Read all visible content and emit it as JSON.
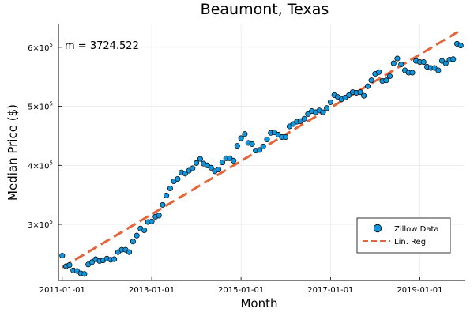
{
  "chart_data": {
    "type": "scatter",
    "title": "Beaumont, Texas",
    "xlabel": "Month",
    "ylabel": "Median Price ($)",
    "annotation": "m = 3724.522",
    "legend_position": "bottom-right",
    "grid": true,
    "xlim": [
      "2010-12-01",
      "2020-01-01"
    ],
    "ylim": [
      205000,
      640000
    ],
    "x_ticks": [
      "2011-01-01",
      "2013-01-01",
      "2015-01-01",
      "2017-01-01",
      "2019-01-01"
    ],
    "y_ticks": [
      {
        "value": 300000,
        "mantissa": "3",
        "exponent": "5"
      },
      {
        "value": 400000,
        "mantissa": "4",
        "exponent": "5"
      },
      {
        "value": 500000,
        "mantissa": "5",
        "exponent": "5"
      },
      {
        "value": 600000,
        "mantissa": "6",
        "exponent": "5"
      }
    ],
    "tick_multiplier": "×10",
    "series": [
      {
        "name": "Zillow Data",
        "kind": "scatter",
        "color": "#0f96dd",
        "x": [
          "2011-01-01",
          "2011-02-01",
          "2011-03-01",
          "2011-04-01",
          "2011-05-01",
          "2011-06-01",
          "2011-07-01",
          "2011-08-01",
          "2011-09-01",
          "2011-10-01",
          "2011-11-01",
          "2011-12-01",
          "2012-01-01",
          "2012-02-01",
          "2012-03-01",
          "2012-04-01",
          "2012-05-01",
          "2012-06-01",
          "2012-07-01",
          "2012-08-01",
          "2012-09-01",
          "2012-10-01",
          "2012-11-01",
          "2012-12-01",
          "2013-01-01",
          "2013-02-01",
          "2013-03-01",
          "2013-04-01",
          "2013-05-01",
          "2013-06-01",
          "2013-07-01",
          "2013-08-01",
          "2013-09-01",
          "2013-10-01",
          "2013-11-01",
          "2013-12-01",
          "2014-01-01",
          "2014-02-01",
          "2014-03-01",
          "2014-04-01",
          "2014-05-01",
          "2014-06-01",
          "2014-07-01",
          "2014-08-01",
          "2014-09-01",
          "2014-10-01",
          "2014-11-01",
          "2014-12-01",
          "2015-01-01",
          "2015-02-01",
          "2015-03-01",
          "2015-04-01",
          "2015-05-01",
          "2015-06-01",
          "2015-07-01",
          "2015-08-01",
          "2015-09-01",
          "2015-10-01",
          "2015-11-01",
          "2015-12-01",
          "2016-01-01",
          "2016-02-01",
          "2016-03-01",
          "2016-04-01",
          "2016-05-01",
          "2016-06-01",
          "2016-07-01",
          "2016-08-01",
          "2016-09-01",
          "2016-10-01",
          "2016-11-01",
          "2016-12-01",
          "2017-01-01",
          "2017-02-01",
          "2017-03-01",
          "2017-04-01",
          "2017-05-01",
          "2017-06-01",
          "2017-07-01",
          "2017-08-01",
          "2017-09-01",
          "2017-10-01",
          "2017-11-01",
          "2017-12-01",
          "2018-01-01",
          "2018-02-01",
          "2018-03-01",
          "2018-04-01",
          "2018-05-01",
          "2018-06-01",
          "2018-07-01",
          "2018-08-01",
          "2018-09-01",
          "2018-10-01",
          "2018-11-01",
          "2018-12-01",
          "2019-01-01",
          "2019-02-01",
          "2019-03-01",
          "2019-04-01",
          "2019-05-01",
          "2019-06-01",
          "2019-07-01",
          "2019-08-01",
          "2019-09-01",
          "2019-10-01",
          "2019-11-01",
          "2019-12-01"
        ],
        "y": [
          247000,
          229000,
          231000,
          222000,
          221000,
          217000,
          216000,
          232000,
          236000,
          241000,
          238000,
          239000,
          242000,
          240000,
          241000,
          253000,
          257000,
          257000,
          253000,
          271000,
          281000,
          293000,
          290000,
          304000,
          305000,
          313000,
          315000,
          333000,
          349000,
          361000,
          373000,
          377000,
          388000,
          386000,
          391000,
          395000,
          404000,
          411000,
          403000,
          400000,
          396000,
          390000,
          393000,
          405000,
          412000,
          412000,
          408000,
          433000,
          446000,
          453000,
          438000,
          436000,
          425000,
          426000,
          432000,
          444000,
          455000,
          456000,
          452000,
          448000,
          448000,
          466000,
          470000,
          474000,
          475000,
          479000,
          487000,
          492000,
          490000,
          493000,
          490000,
          497000,
          507000,
          519000,
          516000,
          512000,
          515000,
          519000,
          524000,
          523000,
          524000,
          518000,
          534000,
          544000,
          555000,
          558000,
          543000,
          544000,
          551000,
          573000,
          581000,
          571000,
          561000,
          557000,
          557000,
          577000,
          575000,
          575000,
          567000,
          565000,
          565000,
          561000,
          577000,
          573000,
          579000,
          580000,
          606000,
          603000
        ]
      },
      {
        "name": "Lin. Reg",
        "kind": "line",
        "dashed": true,
        "color": "#e2653b",
        "x": [
          "2011-01-01",
          "2019-12-01"
        ],
        "y": [
          227000,
          629000
        ]
      }
    ]
  }
}
